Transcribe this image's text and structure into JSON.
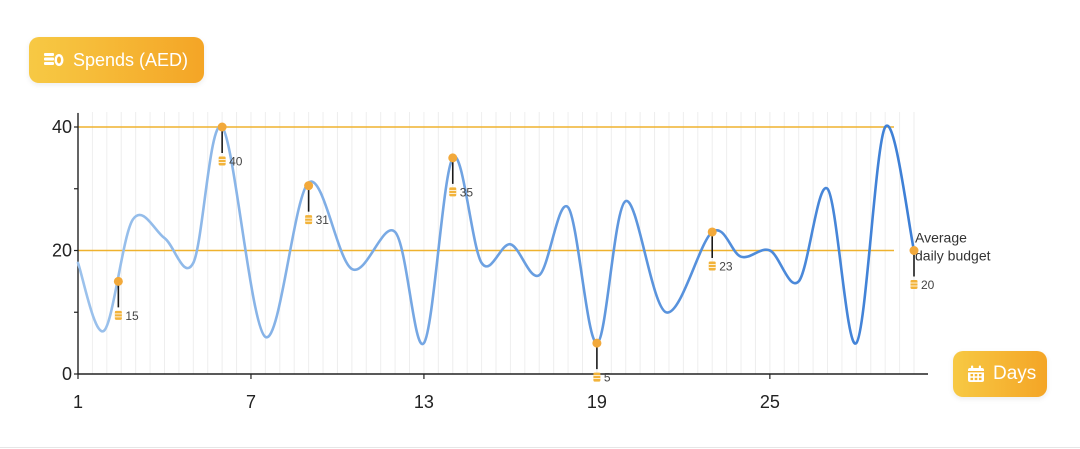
{
  "header": {
    "spends_label": "Spends (AED)",
    "days_label": "Days",
    "spends_icon": "coins-icon",
    "days_icon": "calendar-icon"
  },
  "colors": {
    "accent_start": "#f7c944",
    "accent_end": "#f4a526",
    "line_light": "#9cc2ec",
    "line_dark": "#3d7fd6",
    "reference_line": "#efb22e",
    "axis": "#222222",
    "grid": "#eeeeee"
  },
  "chart_data": {
    "type": "line",
    "title": "",
    "xlabel": "Days",
    "ylabel": "Spends (AED)",
    "xlim": [
      1,
      30
    ],
    "ylim": [
      0,
      40
    ],
    "x_ticks": [
      1,
      7,
      13,
      19,
      25
    ],
    "y_ticks": [
      0,
      20,
      40
    ],
    "y_minor_ticks": [
      10,
      30
    ],
    "x": [
      1,
      1.9,
      2.9,
      4,
      5,
      6,
      7.5,
      9,
      10.5,
      12,
      13,
      14,
      15,
      16,
      17,
      18,
      19,
      20,
      21.4,
      23,
      24,
      25,
      26,
      27,
      28,
      29,
      30
    ],
    "y": [
      18,
      7,
      25,
      22,
      18,
      40,
      6,
      31,
      17,
      23,
      5,
      35,
      18,
      21,
      16,
      27,
      5,
      28,
      10,
      23,
      19,
      20,
      15,
      30,
      5,
      40,
      20
    ],
    "reference_lines": [
      {
        "value": 40,
        "label": ""
      },
      {
        "value": 20,
        "label_line1": "Average",
        "label_line2": "daily budget"
      }
    ],
    "annotations": [
      {
        "x": 2.4,
        "y": 15,
        "label": "15"
      },
      {
        "x": 6,
        "y": 40,
        "label": "40"
      },
      {
        "x": 9,
        "y": 30.5,
        "label": "31"
      },
      {
        "x": 14,
        "y": 35,
        "label": "35"
      },
      {
        "x": 19,
        "y": 5,
        "label": "5"
      },
      {
        "x": 23,
        "y": 23,
        "label": "23"
      },
      {
        "x": 30,
        "y": 20,
        "label": "20"
      }
    ],
    "grid": true,
    "legend": "none"
  }
}
